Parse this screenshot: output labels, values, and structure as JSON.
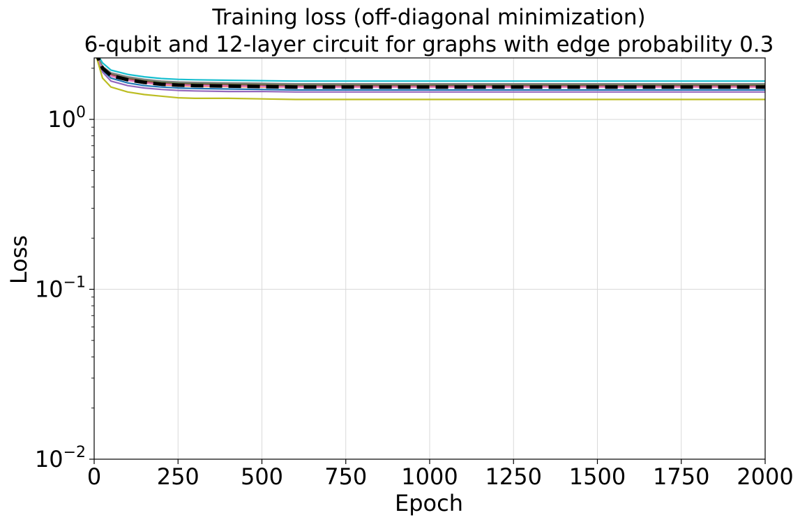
{
  "chart_data": {
    "type": "line",
    "title": [
      "Training loss (off-diagonal minimization)",
      "6-qubit and 12-layer circuit for graphs with edge probability 0.3"
    ],
    "xlabel": "Epoch",
    "ylabel": "Loss",
    "xlim": [
      0,
      2000
    ],
    "ylim": [
      0.01,
      2.3
    ],
    "yscale": "log",
    "grid": true,
    "x_ticks": [
      0,
      250,
      500,
      750,
      1000,
      1250,
      1500,
      1750,
      2000
    ],
    "x_tick_labels": [
      "0",
      "250",
      "500",
      "750",
      "1000",
      "1250",
      "1500",
      "1750",
      "2000"
    ],
    "y_ticks": [
      0.01,
      0.1,
      1
    ],
    "y_tick_labels": [
      {
        "base": "10",
        "exp": "−2"
      },
      {
        "base": "10",
        "exp": "−1"
      },
      {
        "base": "10",
        "exp": "0"
      }
    ],
    "x": [
      0,
      25,
      50,
      100,
      150,
      200,
      250,
      300,
      400,
      500,
      600,
      750,
      1000,
      1250,
      1500,
      1750,
      2000
    ],
    "series": [
      {
        "color": "#1f77b4",
        "style": "solid",
        "values": [
          2.6,
          1.95,
          1.75,
          1.64,
          1.58,
          1.55,
          1.53,
          1.52,
          1.51,
          1.5,
          1.49,
          1.49,
          1.49,
          1.49,
          1.49,
          1.49,
          1.49
        ]
      },
      {
        "color": "#ff7f0e",
        "style": "solid",
        "values": [
          2.6,
          2.0,
          1.8,
          1.7,
          1.64,
          1.6,
          1.58,
          1.57,
          1.56,
          1.55,
          1.55,
          1.55,
          1.55,
          1.55,
          1.55,
          1.55,
          1.55
        ]
      },
      {
        "color": "#2ca02c",
        "style": "solid",
        "values": [
          2.6,
          2.05,
          1.86,
          1.76,
          1.7,
          1.66,
          1.64,
          1.63,
          1.62,
          1.61,
          1.6,
          1.6,
          1.6,
          1.6,
          1.6,
          1.6,
          1.6
        ]
      },
      {
        "color": "#d62728",
        "style": "solid",
        "values": [
          2.6,
          2.0,
          1.82,
          1.72,
          1.66,
          1.62,
          1.6,
          1.59,
          1.58,
          1.57,
          1.56,
          1.56,
          1.56,
          1.56,
          1.56,
          1.56,
          1.56
        ]
      },
      {
        "color": "#9467bd",
        "style": "solid",
        "values": [
          2.6,
          1.9,
          1.68,
          1.58,
          1.53,
          1.5,
          1.48,
          1.47,
          1.46,
          1.46,
          1.45,
          1.45,
          1.45,
          1.45,
          1.45,
          1.45,
          1.45
        ]
      },
      {
        "color": "#8c564b",
        "style": "solid",
        "values": [
          2.6,
          2.02,
          1.84,
          1.74,
          1.68,
          1.64,
          1.62,
          1.61,
          1.6,
          1.59,
          1.58,
          1.58,
          1.58,
          1.58,
          1.58,
          1.58,
          1.58
        ]
      },
      {
        "color": "#e377c2",
        "style": "solid",
        "values": [
          2.6,
          1.98,
          1.8,
          1.7,
          1.64,
          1.61,
          1.59,
          1.58,
          1.57,
          1.56,
          1.55,
          1.55,
          1.55,
          1.55,
          1.55,
          1.55,
          1.55
        ]
      },
      {
        "color": "#7f7f7f",
        "style": "solid",
        "values": [
          2.6,
          2.05,
          1.88,
          1.78,
          1.72,
          1.68,
          1.66,
          1.65,
          1.64,
          1.63,
          1.62,
          1.62,
          1.62,
          1.62,
          1.62,
          1.62,
          1.62
        ]
      },
      {
        "color": "#bcbd22",
        "style": "solid",
        "values": [
          2.6,
          1.75,
          1.55,
          1.45,
          1.4,
          1.37,
          1.34,
          1.33,
          1.33,
          1.32,
          1.31,
          1.31,
          1.31,
          1.31,
          1.31,
          1.31,
          1.31
        ]
      },
      {
        "color": "#17becf",
        "style": "solid",
        "values": [
          2.6,
          2.15,
          1.95,
          1.84,
          1.78,
          1.74,
          1.72,
          1.71,
          1.7,
          1.69,
          1.68,
          1.68,
          1.68,
          1.68,
          1.68,
          1.68,
          1.68
        ]
      },
      {
        "color": "#000000",
        "style": "dashed",
        "values": [
          2.6,
          2.0,
          1.81,
          1.71,
          1.65,
          1.61,
          1.59,
          1.58,
          1.57,
          1.56,
          1.55,
          1.55,
          1.55,
          1.55,
          1.55,
          1.55,
          1.55
        ]
      }
    ]
  }
}
